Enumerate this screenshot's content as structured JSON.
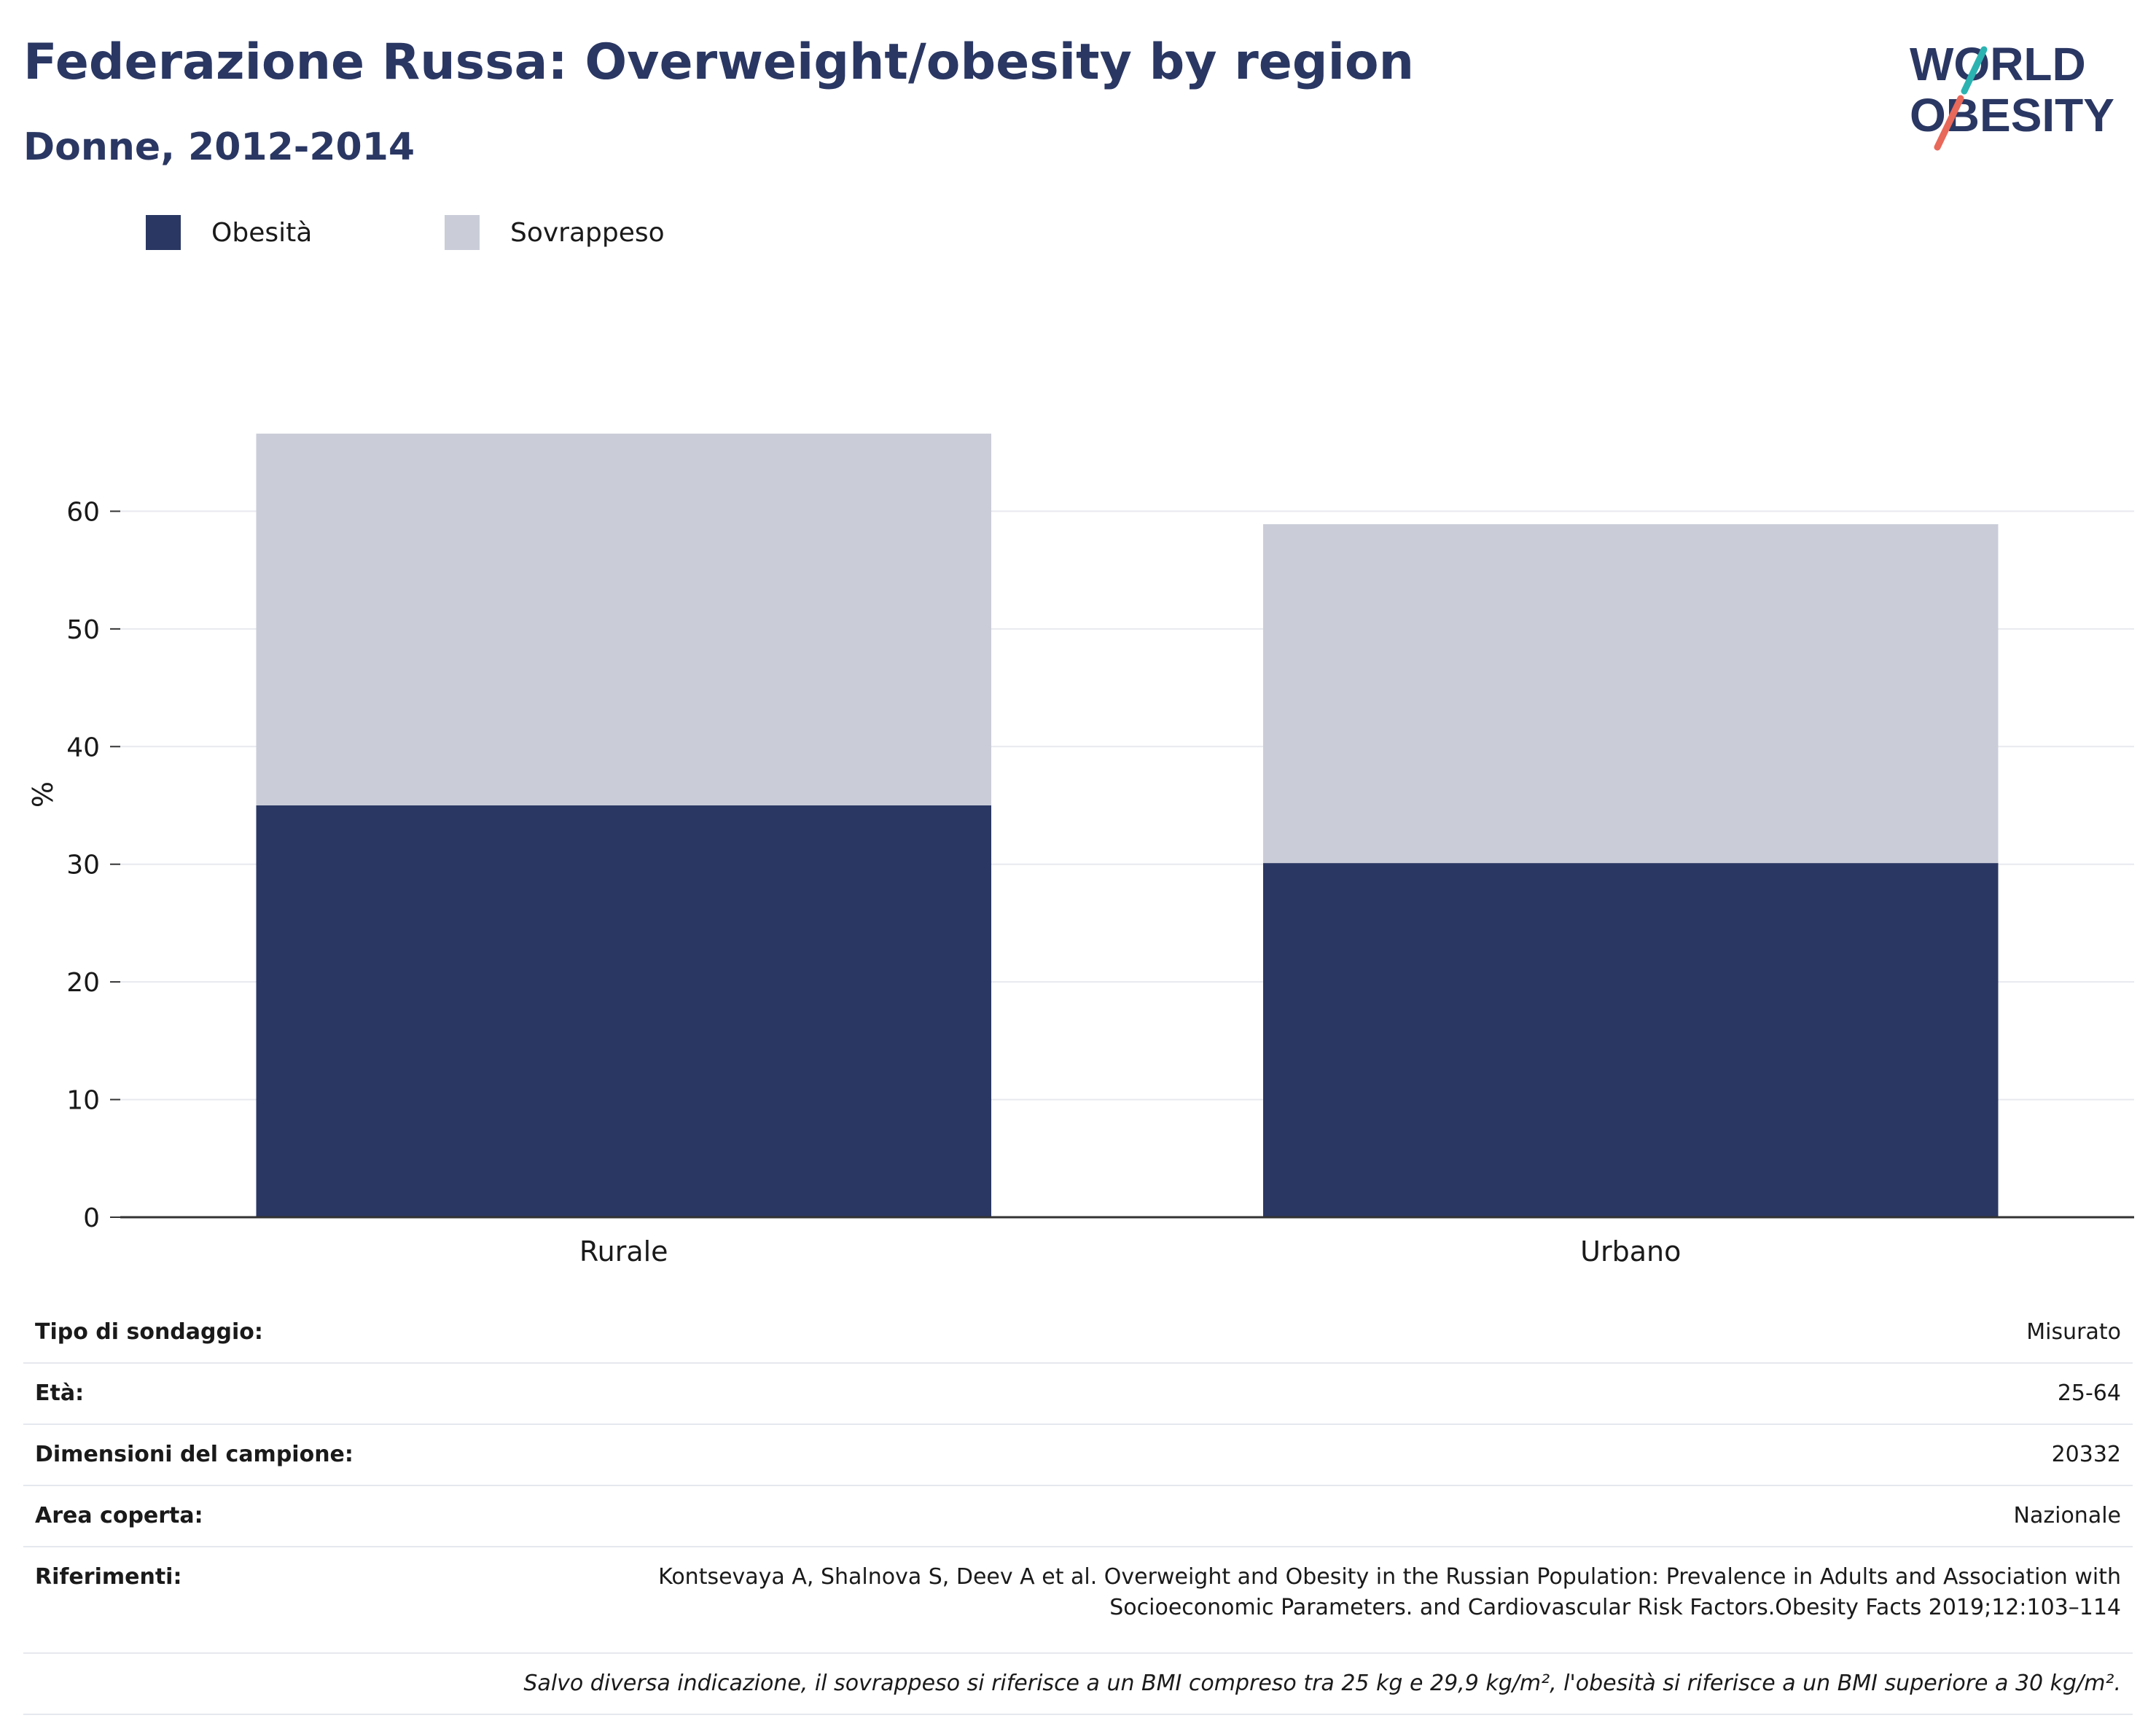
{
  "header": {
    "title": "Federazione Russa: Overweight/obesity by region",
    "subtitle": "Donne, 2012-2014"
  },
  "logo": {
    "line1": "WORLD",
    "line2": "OBESITY"
  },
  "legend": [
    {
      "label": "Obesità",
      "color": "#2a3763"
    },
    {
      "label": "Sovrappeso",
      "color": "#cacdd8"
    }
  ],
  "chart_data": {
    "type": "bar",
    "stacked": true,
    "categories": [
      "Rurale",
      "Urbano"
    ],
    "series": [
      {
        "name": "Obesità",
        "values": [
          35.0,
          30.1
        ],
        "color": "#2a3763"
      },
      {
        "name": "Sovrappeso",
        "values": [
          31.6,
          28.8
        ],
        "color": "#cacdd8"
      }
    ],
    "ylabel": "%",
    "xlabel": "",
    "ylim": [
      0,
      70
    ],
    "yticks": [
      0,
      10,
      20,
      30,
      40,
      50,
      60
    ],
    "grid": true,
    "legend_position": "top-left"
  },
  "info": {
    "rows": [
      {
        "label": "Tipo di sondaggio:",
        "value": "Misurato"
      },
      {
        "label": "Età:",
        "value": "25-64"
      },
      {
        "label": "Dimensioni del campione:",
        "value": "20332"
      },
      {
        "label": "Area coperta:",
        "value": "Nazionale"
      }
    ],
    "references_label": "Riferimenti:",
    "references_line1": "Kontsevaya A, Shalnova S, Deev A et al. Overweight and Obesity in the Russian Population: Prevalence in Adults and Association with",
    "references_line2": "Socioeconomic Parameters. and Cardiovascular Risk Factors.Obesity Facts 2019;12:103–114",
    "note": "Salvo diversa indicazione, il sovrappeso si riferisce a un BMI compreso tra 25 kg e 29,9 kg/m², l'obesità si riferisce a un BMI superiore a 30 kg/m²."
  }
}
